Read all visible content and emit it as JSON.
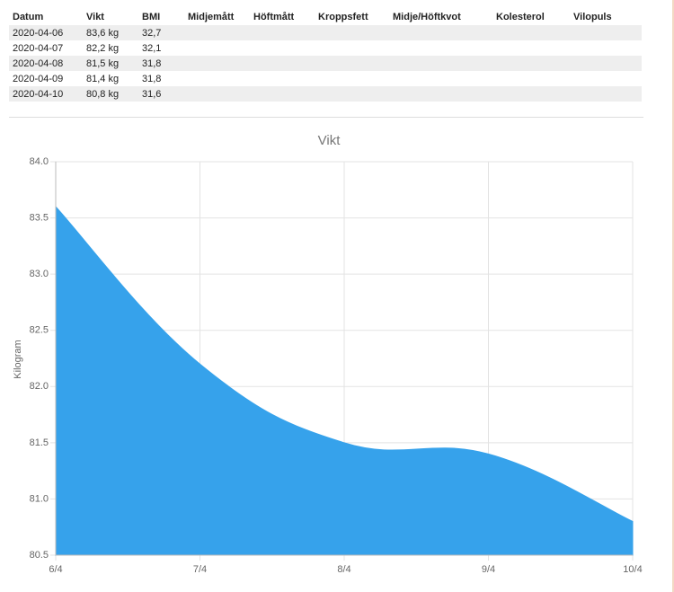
{
  "table": {
    "headers": [
      "Datum",
      "Vikt",
      "BMI",
      "Midjemått",
      "Höftmått",
      "Kroppsfett",
      "Midje/Höftkvot",
      "Kolesterol",
      "Vilopuls"
    ],
    "rows": [
      [
        "2020-04-06",
        "83,6 kg",
        "32,7"
      ],
      [
        "2020-04-07",
        "82,2 kg",
        "32,1"
      ],
      [
        "2020-04-08",
        "81,5 kg",
        "31,8"
      ],
      [
        "2020-04-09",
        "81,4 kg",
        "31,8"
      ],
      [
        "2020-04-10",
        "80,8 kg",
        "31,6"
      ]
    ]
  },
  "chart_data": {
    "type": "area",
    "title": "Vikt",
    "y_label": "Kilogram",
    "categories": [
      "6/4",
      "7/4",
      "8/4",
      "9/4",
      "10/4"
    ],
    "values": [
      83.6,
      82.2,
      81.5,
      81.4,
      80.8
    ],
    "color": "#36a2eb",
    "ylim": [
      80.5,
      84
    ],
    "yticks": [
      80.5,
      {
        "value": 81,
        "label": "81.0"
      },
      81.5,
      {
        "value": 82,
        "label": "82.0"
      },
      82.5,
      {
        "value": 83,
        "label": "83.0"
      },
      83.5,
      {
        "value": 84,
        "label": "84.0"
      }
    ],
    "grid": true
  }
}
